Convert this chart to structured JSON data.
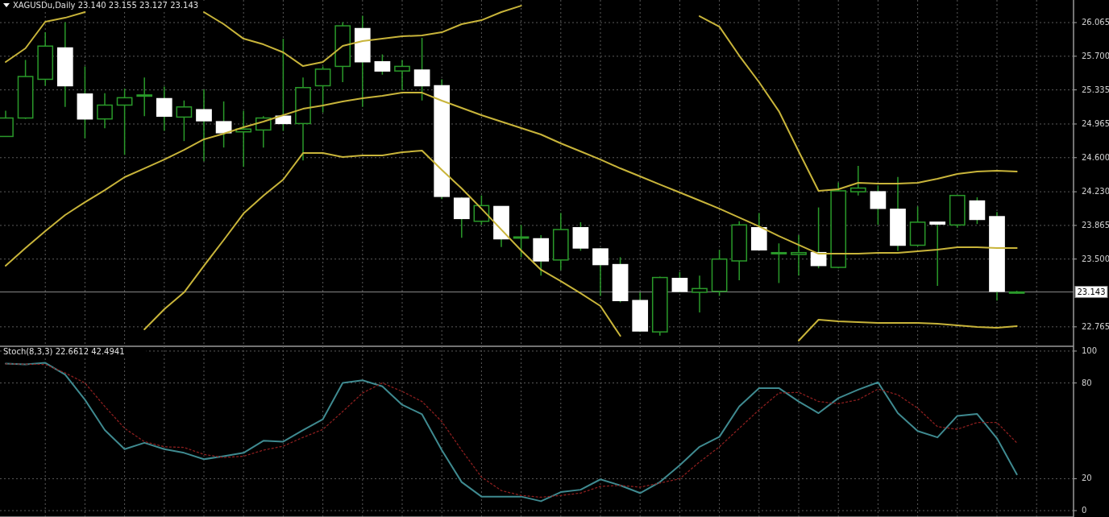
{
  "chart_data": [
    {
      "type": "candlestick",
      "title": "XAGUSDu,Daily 23.140 23.155 23.127 23.143",
      "categories": [
        null,
        null,
        null,
        null,
        null,
        null,
        null,
        null,
        null,
        null,
        null,
        null,
        null,
        null,
        null,
        null,
        null,
        null,
        null,
        null,
        null,
        null,
        null,
        null,
        null,
        null,
        null,
        null,
        null,
        null,
        null,
        null,
        null,
        null,
        null,
        null,
        null,
        null,
        null,
        null,
        null,
        null,
        null,
        null,
        null,
        null,
        null,
        null,
        null,
        null,
        null,
        null
      ],
      "ohlc": [
        [
          24.83,
          25.11,
          24.83,
          25.03
        ],
        [
          25.03,
          25.66,
          25.02,
          25.48
        ],
        [
          25.45,
          25.96,
          25.38,
          25.81
        ],
        [
          25.79,
          26.07,
          25.15,
          25.38
        ],
        [
          25.29,
          25.59,
          24.81,
          25.02
        ],
        [
          25.02,
          25.3,
          24.92,
          25.17
        ],
        [
          25.17,
          25.35,
          24.63,
          25.25
        ],
        [
          25.27,
          25.47,
          25.05,
          25.28
        ],
        [
          25.24,
          25.37,
          24.89,
          25.05
        ],
        [
          25.04,
          25.22,
          24.78,
          25.15
        ],
        [
          25.12,
          25.34,
          24.56,
          25.0
        ],
        [
          24.99,
          25.21,
          24.71,
          24.87
        ],
        [
          24.88,
          25.11,
          24.5,
          24.91
        ],
        [
          24.9,
          25.05,
          24.71,
          25.03
        ],
        [
          25.05,
          25.89,
          24.89,
          24.97
        ],
        [
          24.97,
          25.47,
          24.57,
          25.36
        ],
        [
          25.38,
          25.59,
          25.09,
          25.56
        ],
        [
          25.59,
          26.07,
          25.42,
          26.03
        ],
        [
          26.0,
          26.14,
          25.15,
          25.64
        ],
        [
          25.64,
          25.72,
          25.5,
          25.54
        ],
        [
          25.54,
          25.66,
          25.33,
          25.59
        ],
        [
          25.55,
          25.9,
          25.22,
          25.38
        ],
        [
          25.38,
          25.45,
          24.15,
          24.18
        ],
        [
          24.16,
          24.17,
          23.73,
          23.94
        ],
        [
          23.91,
          24.19,
          23.87,
          24.08
        ],
        [
          24.07,
          24.07,
          23.63,
          23.72
        ],
        [
          23.73,
          23.87,
          23.52,
          23.74
        ],
        [
          23.72,
          23.76,
          23.32,
          23.48
        ],
        [
          23.49,
          24.0,
          23.38,
          23.82
        ],
        [
          23.84,
          23.9,
          23.59,
          23.62
        ],
        [
          23.61,
          23.62,
          23.1,
          23.44
        ],
        [
          23.44,
          23.52,
          23.03,
          23.05
        ],
        [
          23.05,
          23.14,
          22.71,
          22.72
        ],
        [
          22.71,
          23.31,
          22.67,
          23.3
        ],
        [
          23.29,
          23.36,
          23.14,
          23.15
        ],
        [
          23.14,
          23.32,
          22.92,
          23.18
        ],
        [
          23.15,
          23.6,
          23.1,
          23.5
        ],
        [
          23.48,
          23.91,
          23.27,
          23.87
        ],
        [
          23.84,
          24.0,
          23.6,
          23.6
        ],
        [
          23.56,
          23.67,
          23.24,
          23.57
        ],
        [
          23.55,
          23.76,
          23.32,
          23.57
        ],
        [
          23.57,
          24.06,
          23.4,
          23.43
        ],
        [
          23.41,
          24.33,
          23.4,
          24.24
        ],
        [
          24.23,
          24.51,
          24.19,
          24.27
        ],
        [
          24.23,
          24.3,
          23.87,
          24.05
        ],
        [
          24.04,
          24.39,
          23.59,
          23.65
        ],
        [
          23.65,
          24.07,
          23.64,
          23.9
        ],
        [
          23.9,
          23.9,
          23.21,
          23.88
        ],
        [
          23.87,
          24.19,
          23.84,
          24.19
        ],
        [
          24.13,
          24.17,
          23.88,
          23.93
        ],
        [
          23.96,
          24.01,
          23.05,
          23.15
        ],
        [
          23.14,
          23.155,
          23.127,
          23.143
        ]
      ],
      "series": [
        {
          "type": "line",
          "color": "#c8b43a",
          "values": [
            25.637,
            25.786,
            26.074,
            26.117,
            26.179,
            null,
            null,
            null,
            null,
            null,
            26.179,
            26.048,
            25.89,
            25.829,
            25.742,
            25.593,
            25.637,
            25.812,
            25.864,
            25.89,
            25.917,
            25.925,
            25.96,
            26.048,
            26.091,
            26.179,
            26.248,
            null,
            null,
            null,
            null,
            null,
            null,
            null,
            null,
            26.135,
            26.021,
            25.707,
            25.419,
            25.104,
            24.668,
            24.24,
            24.257,
            24.327,
            24.318,
            24.318,
            24.327,
            24.371,
            24.423,
            24.449,
            24.458,
            24.449
          ]
        },
        {
          "type": "line",
          "color": "#c8b43a",
          "values": [
            23.427,
            23.619,
            23.803,
            23.978,
            24.117,
            24.248,
            24.388,
            24.484,
            24.58,
            24.685,
            24.799,
            24.86,
            24.93,
            24.991,
            25.061,
            25.13,
            25.165,
            25.209,
            25.244,
            25.27,
            25.305,
            25.305,
            25.218,
            25.139,
            25.061,
            24.991,
            24.921,
            24.851,
            24.755,
            24.668,
            24.58,
            24.484,
            24.397,
            24.309,
            24.222,
            24.135,
            24.047,
            23.951,
            23.855,
            23.75,
            23.654,
            23.558,
            23.558,
            23.558,
            23.567,
            23.567,
            23.585,
            23.602,
            23.628,
            23.628,
            23.619,
            23.619
          ]
        },
        {
          "type": "line",
          "color": "#c8b43a",
          "values": [
            null,
            null,
            null,
            null,
            null,
            null,
            null,
            22.737,
            22.956,
            23.139,
            23.427,
            23.707,
            23.995,
            24.187,
            24.362,
            24.65,
            24.65,
            24.606,
            24.624,
            24.624,
            24.659,
            24.676,
            24.467,
            24.266,
            24.047,
            23.82,
            23.593,
            23.384,
            23.261,
            23.13,
            22.991,
            22.667,
            null,
            null,
            null,
            null,
            null,
            null,
            null,
            null,
            22.615,
            22.842,
            22.825,
            22.816,
            22.807,
            22.807,
            22.807,
            22.798,
            22.781,
            22.764,
            22.755,
            22.773
          ]
        }
      ],
      "ylim": [
        22.554,
        26.31
      ],
      "yticks": [
        26.065,
        {
          "value": 25.7,
          "label": "25.700"
        },
        25.335,
        24.965,
        {
          "value": 24.6,
          "label": "24.600"
        },
        {
          "value": 24.23,
          "label": "24.230"
        },
        23.865,
        {
          "value": 23.5,
          "label": "23.500"
        },
        22.765
      ],
      "ref_lines": [
        {
          "axis": "y",
          "value": 23.143,
          "label": "23.143",
          "color": "#8a8a8a"
        }
      ],
      "grid": true,
      "tick_labels": "y"
    },
    {
      "type": "line",
      "title": "Stoch(8,3,3) 22.6612 42.4941",
      "categories": [
        null,
        null,
        null,
        null,
        null,
        null,
        null,
        null,
        null,
        null,
        null,
        null,
        null,
        null,
        null,
        null,
        null,
        null,
        null,
        null,
        null,
        null,
        null,
        null,
        null,
        null,
        null,
        null,
        null,
        null,
        null,
        null,
        null,
        null,
        null,
        null,
        null,
        null,
        null,
        null,
        null,
        null,
        null,
        null,
        null,
        null,
        null,
        null,
        null,
        null,
        null,
        null
      ],
      "series": [
        {
          "color": "#3f8a90",
          "line_style": "solid",
          "values": [
            92.2,
            91.6,
            92.6,
            85.3,
            69.5,
            50.5,
            38.5,
            42.5,
            38.5,
            36.2,
            32.2,
            34.1,
            36.2,
            43.8,
            43.2,
            50.5,
            57.3,
            80,
            81.7,
            77.9,
            66.3,
            60.4,
            37.9,
            17.9,
            8.8,
            8.8,
            8.8,
            5.9,
            11.6,
            13.1,
            19.6,
            15.8,
            11,
            17.9,
            28.4,
            40,
            46.3,
            65.3,
            76.8,
            76.8,
            68.4,
            61.1,
            70.5,
            75.8,
            80.4,
            61.1,
            49.9,
            45.9,
            59.4,
            60.6,
            45.3,
            22.7
          ]
        },
        {
          "color": "#8b1e1e",
          "line_style": "dotted",
          "values": [
            92,
            91.8,
            91.6,
            86.3,
            80,
            65.3,
            51.6,
            43.2,
            40,
            39.6,
            35.2,
            33.3,
            34.1,
            37.9,
            40.4,
            45.9,
            50.9,
            62.1,
            73.7,
            80,
            74.7,
            68.4,
            55.8,
            37.9,
            21,
            12.6,
            9.5,
            8.4,
            9.5,
            11,
            15.2,
            15.8,
            14.7,
            17.3,
            20,
            30.5,
            40,
            51.6,
            63.2,
            73.7,
            74.1,
            68.4,
            67,
            69.5,
            76.2,
            72.6,
            64.2,
            52.6,
            51,
            55.2,
            55.2,
            42.5
          ]
        }
      ],
      "ylim": [
        -4,
        103
      ],
      "yticks": [
        0,
        20,
        80,
        100
      ],
      "grid": true,
      "tick_labels": "y"
    }
  ]
}
